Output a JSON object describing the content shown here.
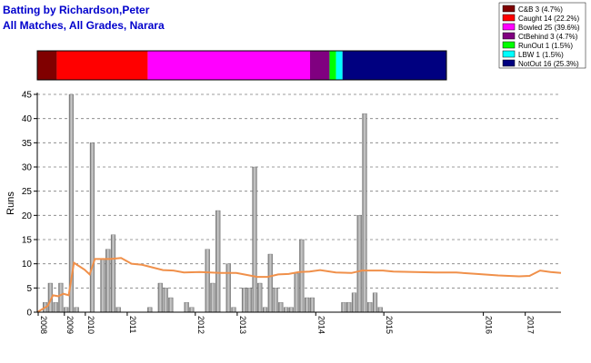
{
  "chart_data": {
    "type": "bar",
    "title": "Batting by Richardson,Peter",
    "subtitle": "All Matches, All Grades, Narara",
    "title_color": "#0000cc",
    "ylabel": "Runs",
    "xlabel": "",
    "ylim": [
      0,
      45
    ],
    "yticks": [
      0,
      5,
      10,
      15,
      20,
      25,
      30,
      35,
      40,
      45
    ],
    "grid": true,
    "bar_color": "#a6a6a6",
    "average_line_color": "#f0904a",
    "year_labels": [
      "2008",
      "2009",
      "2010",
      "2011",
      "2012",
      "2013",
      "2014",
      "2015",
      "2016",
      "2017"
    ],
    "year_positions": [
      0,
      5,
      9,
      17,
      30,
      38,
      53,
      66,
      85,
      93
    ],
    "innings_count": 100,
    "values": [
      0,
      2,
      6,
      2,
      6,
      1,
      45,
      1,
      0,
      0,
      35,
      0,
      11,
      13,
      16,
      1,
      0,
      0,
      0,
      0,
      0,
      1,
      0,
      6,
      5,
      3,
      0,
      0,
      2,
      1,
      0,
      0,
      13,
      6,
      21,
      0,
      10,
      1,
      0,
      5,
      5,
      30,
      6,
      1,
      12,
      5,
      2,
      1,
      1,
      8,
      15,
      3,
      3,
      0,
      0,
      0,
      0,
      0,
      2,
      2,
      4,
      20,
      41,
      2,
      4,
      1,
      0,
      0,
      0,
      0,
      0,
      0,
      0,
      0,
      0,
      0,
      0,
      0,
      0,
      0,
      0,
      0,
      0,
      0,
      0,
      0,
      0,
      0,
      0,
      0,
      0,
      0,
      0,
      0,
      0,
      0,
      0,
      0,
      0,
      0
    ],
    "average_line": [
      [
        0,
        0
      ],
      [
        2,
        1.3
      ],
      [
        3,
        3.5
      ],
      [
        4,
        3.3
      ],
      [
        5,
        3.8
      ],
      [
        6,
        3.5
      ],
      [
        7,
        10.2
      ],
      [
        9,
        8.8
      ],
      [
        10,
        7.8
      ],
      [
        11,
        11.0
      ],
      [
        14,
        11.0
      ],
      [
        16,
        11.2
      ],
      [
        18,
        10.0
      ],
      [
        20,
        9.8
      ],
      [
        24,
        8.7
      ],
      [
        26,
        8.6
      ],
      [
        28,
        8.2
      ],
      [
        31,
        8.3
      ],
      [
        35,
        8.1
      ],
      [
        38,
        8.1
      ],
      [
        42,
        7.3
      ],
      [
        44,
        7.3
      ],
      [
        46,
        7.8
      ],
      [
        48,
        7.9
      ],
      [
        50,
        8.3
      ],
      [
        52,
        8.4
      ],
      [
        54,
        8.7
      ],
      [
        57,
        8.2
      ],
      [
        60,
        8.1
      ],
      [
        62,
        8.6
      ],
      [
        66,
        8.6
      ],
      [
        68,
        8.4
      ],
      [
        72,
        8.3
      ],
      [
        76,
        8.2
      ],
      [
        80,
        8.2
      ],
      [
        84,
        7.9
      ],
      [
        88,
        7.6
      ],
      [
        92,
        7.4
      ],
      [
        94,
        7.5
      ],
      [
        96,
        8.6
      ],
      [
        98,
        8.3
      ],
      [
        100,
        8.1
      ]
    ],
    "dismissal_bar": [
      {
        "name": "C&B",
        "count": 3,
        "pct": 4.7,
        "color": "#800000"
      },
      {
        "name": "Caught",
        "count": 14,
        "pct": 22.2,
        "color": "#ff0000"
      },
      {
        "name": "Bowled",
        "count": 25,
        "pct": 39.6,
        "color": "#ff00ff"
      },
      {
        "name": "CtBehind",
        "count": 3,
        "pct": 4.7,
        "color": "#800080"
      },
      {
        "name": "RunOut",
        "count": 1,
        "pct": 1.5,
        "color": "#00ff00"
      },
      {
        "name": "LBW",
        "count": 1,
        "pct": 1.5,
        "color": "#00ffff"
      },
      {
        "name": "NotOut",
        "count": 16,
        "pct": 25.3,
        "color": "#000080"
      }
    ],
    "legend": [
      {
        "label": "C&B 3 (4.7%)",
        "color": "#800000"
      },
      {
        "label": "Caught 14 (22.2%)",
        "color": "#ff0000"
      },
      {
        "label": "Bowled 25 (39.6%)",
        "color": "#ff00ff"
      },
      {
        "label": "CtBehind 3 (4.7%)",
        "color": "#800080"
      },
      {
        "label": "RunOut 1 (1.5%)",
        "color": "#00ff00"
      },
      {
        "label": "LBW 1 (1.5%)",
        "color": "#00ffff"
      },
      {
        "label": "NotOut 16 (25.3%)",
        "color": "#000080"
      }
    ],
    "legend_placement": "top-right"
  }
}
